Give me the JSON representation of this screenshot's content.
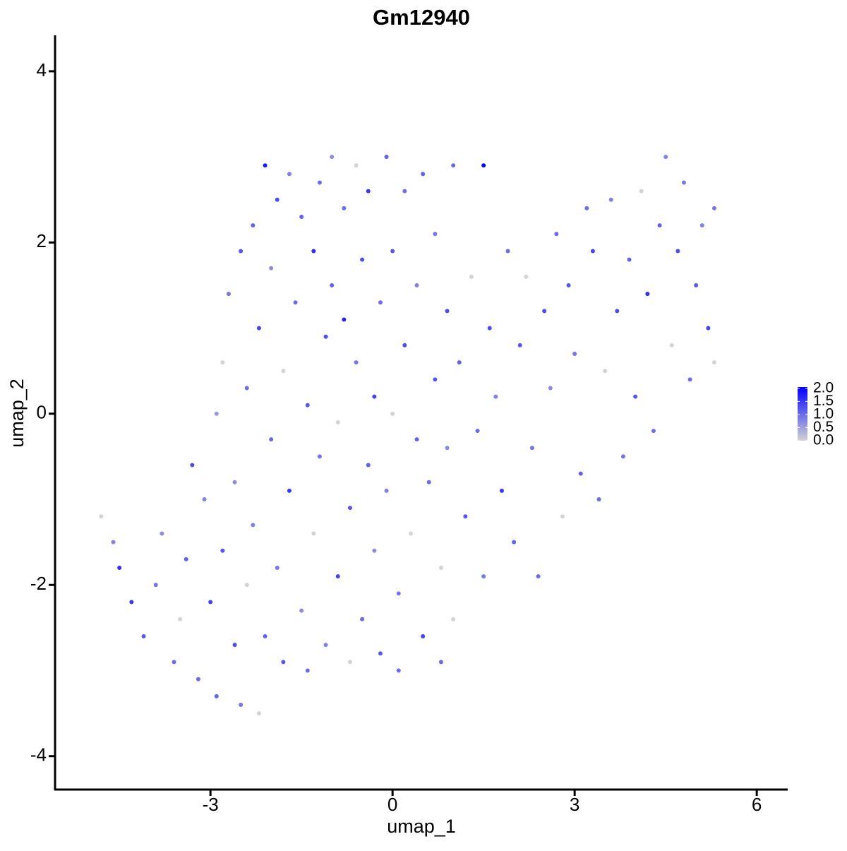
{
  "chart_data": {
    "type": "scatter",
    "title": "Gm12940",
    "x_label": "umap_1",
    "y_label": "umap_2",
    "xlim": [
      -5.56,
      6.51
    ],
    "ylim": [
      -4.39,
      4.42
    ],
    "xticks": [
      -3,
      0,
      3,
      6
    ],
    "yticks": [
      -4,
      -2,
      0,
      2,
      4
    ],
    "grid": false,
    "colors": [
      "#d3d3d3",
      "#0000ff"
    ],
    "color_lim": [
      0,
      2.05
    ],
    "color_ticks": [
      {
        "value": 0,
        "label": "0.0"
      },
      0.5,
      {
        "value": 1,
        "label": "1.0"
      },
      1.5,
      {
        "value": 2,
        "label": "2.0"
      }
    ],
    "x": [
      -4.8,
      -4.6,
      -4.5,
      -4.3,
      -4.1,
      -3.9,
      -3.8,
      -3.6,
      -3.5,
      -3.4,
      -3.3,
      -3.2,
      -3.1,
      -3.0,
      -2.9,
      -2.9,
      -2.8,
      -2.8,
      -2.7,
      -2.6,
      -2.6,
      -2.5,
      -2.5,
      -2.4,
      -2.4,
      -2.3,
      -2.3,
      -2.2,
      -2.2,
      -2.1,
      -2.1,
      -2.0,
      -2.0,
      -1.9,
      -1.9,
      -1.8,
      -1.8,
      -1.7,
      -1.7,
      -1.6,
      -1.5,
      -1.5,
      -1.4,
      -1.4,
      -1.3,
      -1.3,
      -1.2,
      -1.2,
      -1.1,
      -1.1,
      -1.0,
      -1.0,
      -0.9,
      -0.9,
      -0.8,
      -0.8,
      -0.7,
      -0.7,
      -0.6,
      -0.6,
      -0.5,
      -0.5,
      -0.4,
      -0.4,
      -0.3,
      -0.3,
      -0.2,
      -0.2,
      -0.1,
      -0.1,
      0.0,
      0.0,
      0.1,
      0.1,
      0.2,
      0.2,
      0.3,
      0.4,
      0.4,
      0.5,
      0.5,
      0.6,
      0.7,
      0.7,
      0.8,
      0.8,
      0.9,
      0.9,
      1.0,
      1.0,
      1.1,
      1.2,
      1.3,
      1.4,
      1.5,
      1.5,
      1.6,
      1.7,
      1.8,
      1.9,
      2.0,
      2.1,
      2.2,
      2.3,
      2.4,
      2.5,
      2.6,
      2.7,
      2.8,
      2.9,
      3.0,
      3.1,
      3.2,
      3.3,
      3.4,
      3.5,
      3.6,
      3.7,
      3.8,
      3.9,
      4.0,
      4.1,
      4.2,
      4.3,
      4.4,
      4.5,
      4.6,
      4.7,
      4.8,
      4.9,
      5.0,
      5.1,
      5.2,
      5.3,
      5.3
    ],
    "y": [
      -1.2,
      -1.5,
      -1.8,
      -2.2,
      -2.6,
      -2.0,
      -1.4,
      -2.9,
      -2.4,
      -1.7,
      -0.6,
      -3.1,
      -1.0,
      -2.2,
      0.0,
      -3.3,
      0.6,
      -1.6,
      1.4,
      -2.7,
      -0.8,
      1.9,
      -3.4,
      0.3,
      -2.0,
      2.2,
      -1.3,
      1.0,
      -3.5,
      2.9,
      -2.6,
      -0.3,
      1.7,
      2.5,
      -1.8,
      0.5,
      -2.9,
      2.8,
      -0.9,
      1.3,
      -2.3,
      2.3,
      0.1,
      -3.0,
      1.9,
      -1.4,
      2.7,
      -0.5,
      0.9,
      -2.7,
      3.0,
      1.5,
      -1.9,
      -0.1,
      2.4,
      1.1,
      -2.9,
      -1.1,
      0.6,
      2.9,
      1.8,
      -2.4,
      -0.6,
      2.6,
      0.2,
      -1.6,
      1.3,
      -2.8,
      3.0,
      -0.9,
      0.0,
      1.9,
      -2.1,
      -3.0,
      2.6,
      0.8,
      -1.4,
      -0.3,
      1.5,
      2.8,
      -2.6,
      -0.8,
      0.4,
      2.1,
      -1.8,
      -2.9,
      1.2,
      -0.4,
      2.9,
      -2.4,
      0.6,
      -1.2,
      1.6,
      -0.2,
      2.9,
      -1.9,
      1.0,
      0.2,
      -0.9,
      1.9,
      -1.5,
      0.8,
      1.6,
      -0.4,
      -1.9,
      1.2,
      0.3,
      2.1,
      -1.2,
      1.5,
      0.7,
      -0.7,
      2.4,
      1.9,
      -1.0,
      0.5,
      2.5,
      1.2,
      -0.5,
      1.8,
      0.2,
      2.6,
      1.4,
      -0.2,
      2.2,
      3.0,
      0.8,
      1.9,
      2.7,
      0.4,
      1.5,
      2.2,
      1.0,
      2.4,
      0.6
    ],
    "expression": [
      0,
      0.8,
      1.6,
      1.5,
      1.2,
      0.9,
      0.7,
      1.0,
      0,
      1.1,
      1.3,
      1.0,
      0.8,
      1.4,
      0.6,
      1.1,
      0,
      1.2,
      0.9,
      1.3,
      0.7,
      1.2,
      0.9,
      1.0,
      0,
      1.1,
      0.8,
      1.4,
      0,
      1.8,
      1.1,
      1.0,
      0.7,
      1.3,
      0.9,
      0,
      1.2,
      0.8,
      1.5,
      1.0,
      0.7,
      1.1,
      1.2,
      1.0,
      1.6,
      0,
      1.0,
      0.9,
      1.3,
      0.8,
      0.7,
      1.1,
      1.4,
      0,
      1.0,
      1.7,
      0,
      1.2,
      0.9,
      0,
      1.3,
      1.0,
      1.1,
      1.5,
      1.4,
      0.7,
      1.0,
      1.2,
      1.1,
      0.8,
      0,
      1.2,
      0.9,
      1.0,
      1.0,
      1.3,
      0,
      1.1,
      0.8,
      1.1,
      1.4,
      1.0,
      1.2,
      0.9,
      0,
      1.0,
      1.3,
      0.7,
      1.0,
      0,
      1.1,
      1.2,
      0,
      1.0,
      2.0,
      0.9,
      1.3,
      0.8,
      1.5,
      1.0,
      1.1,
      1.2,
      0,
      0.9,
      1.0,
      1.3,
      0.7,
      1.0,
      0,
      1.2,
      0.9,
      1.1,
      1.0,
      1.4,
      1.0,
      0,
      0.8,
      1.3,
      0.9,
      1.1,
      1.2,
      0,
      1.6,
      1.0,
      1.1,
      0.8,
      0,
      1.3,
      0.9,
      1.0,
      1.2,
      0.8,
      1.4,
      0.9,
      0
    ]
  }
}
